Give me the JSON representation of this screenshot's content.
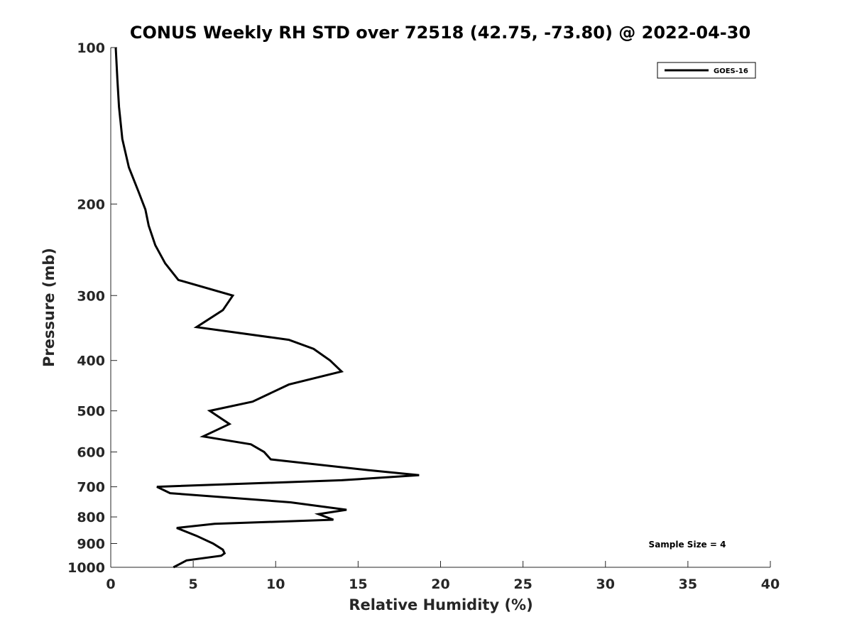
{
  "chart_data": {
    "type": "line",
    "title": "CONUS Weekly RH STD over 72518 (42.75, -73.80) @ 2022-04-30",
    "xlabel": "Relative Humidity (%)",
    "ylabel": "Pressure (mb)",
    "xlim": [
      0,
      40
    ],
    "ylim": [
      100,
      1000
    ],
    "yscale": "log",
    "y_reversed": true,
    "grid": false,
    "x_ticks": [
      0,
      5,
      10,
      15,
      20,
      25,
      30,
      35,
      40
    ],
    "y_ticks": [
      100,
      200,
      300,
      400,
      500,
      600,
      700,
      800,
      900,
      1000
    ],
    "legend_position": "top-right",
    "annotation": "Sample Size = 4",
    "series": [
      {
        "name": "GOES-16",
        "color": "#000000",
        "points": [
          [
            0.3,
            100
          ],
          [
            0.4,
            115
          ],
          [
            0.5,
            130
          ],
          [
            0.7,
            150
          ],
          [
            1.1,
            170
          ],
          [
            1.7,
            190
          ],
          [
            2.1,
            205
          ],
          [
            2.3,
            220
          ],
          [
            2.7,
            240
          ],
          [
            3.3,
            260
          ],
          [
            4.1,
            280
          ],
          [
            7.4,
            300
          ],
          [
            6.8,
            320
          ],
          [
            5.2,
            345
          ],
          [
            10.8,
            365
          ],
          [
            12.3,
            380
          ],
          [
            13.3,
            400
          ],
          [
            14.0,
            420
          ],
          [
            10.8,
            445
          ],
          [
            8.6,
            480
          ],
          [
            6.0,
            500
          ],
          [
            7.2,
            530
          ],
          [
            5.6,
            560
          ],
          [
            8.5,
            580
          ],
          [
            9.3,
            600
          ],
          [
            9.7,
            620
          ],
          [
            15.6,
            650
          ],
          [
            18.7,
            665
          ],
          [
            14.0,
            680
          ],
          [
            2.8,
            700
          ],
          [
            3.6,
            720
          ],
          [
            10.9,
            750
          ],
          [
            14.3,
            775
          ],
          [
            12.6,
            790
          ],
          [
            13.5,
            810
          ],
          [
            6.3,
            825
          ],
          [
            4.0,
            840
          ],
          [
            5.2,
            870
          ],
          [
            6.2,
            900
          ],
          [
            6.8,
            925
          ],
          [
            6.9,
            940
          ],
          [
            6.7,
            950
          ],
          [
            4.6,
            970
          ],
          [
            3.8,
            1000
          ]
        ]
      }
    ]
  }
}
